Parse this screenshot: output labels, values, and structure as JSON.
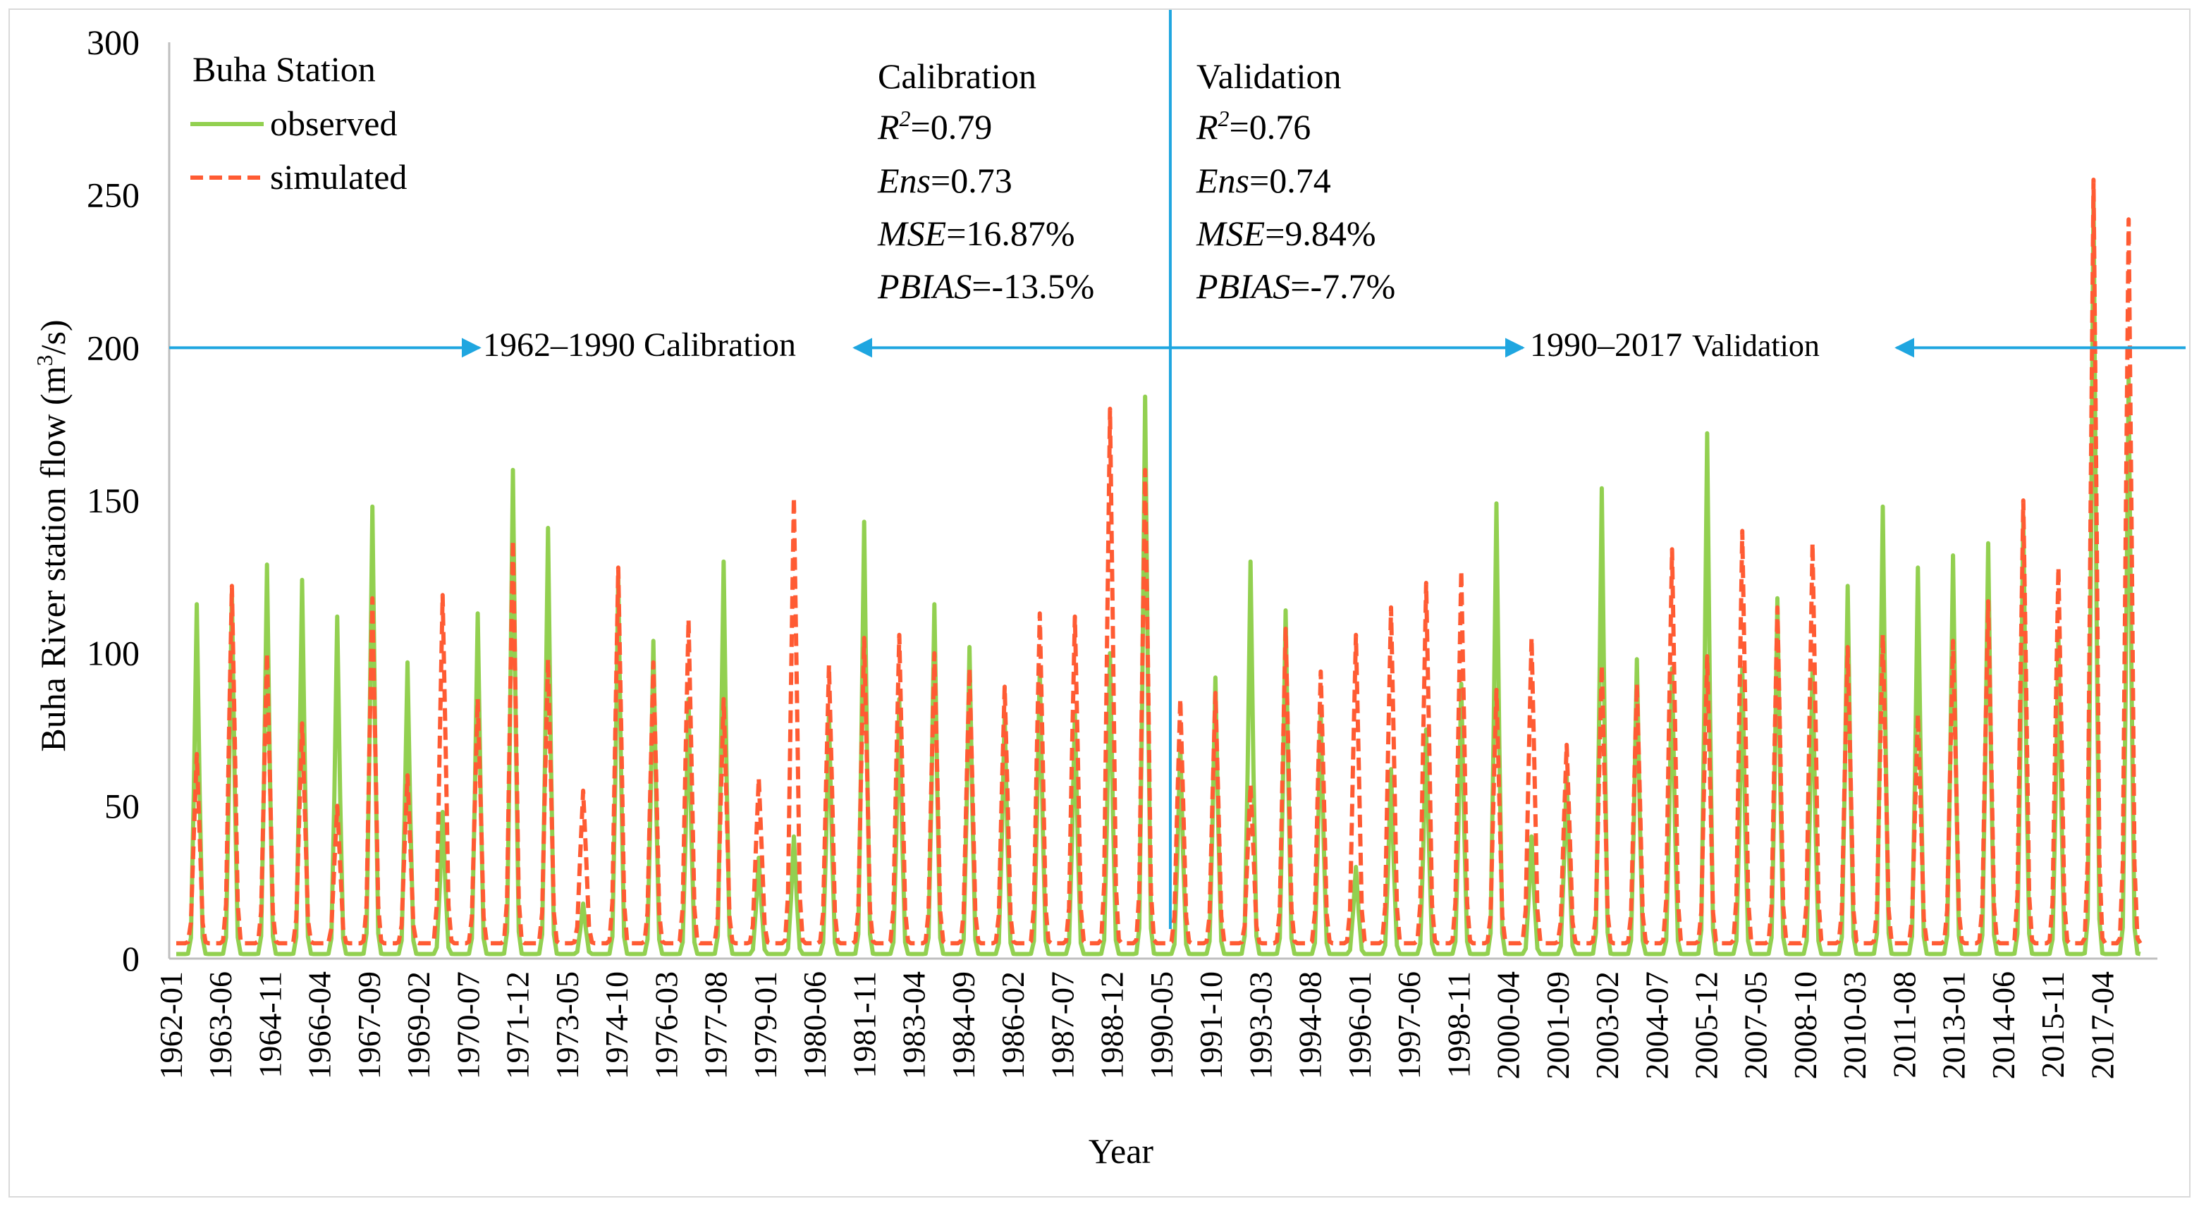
{
  "chart_data": {
    "type": "line",
    "title": "",
    "xlabel": "Year",
    "ylabel_main": "Buha River station flow (m",
    "ylabel_sup": "3",
    "ylabel_end": "/s)",
    "ylim": [
      0,
      300
    ],
    "yticks": [
      "0",
      "50",
      "100",
      "150",
      "200",
      "250",
      "300"
    ],
    "ytick_values": [
      0,
      50,
      100,
      150,
      200,
      250,
      300
    ],
    "xticks": [
      "1962-01",
      "1963-06",
      "1964-11",
      "1966-04",
      "1967-09",
      "1969-02",
      "1970-07",
      "1971-12",
      "1973-05",
      "1974-10",
      "1976-03",
      "1977-08",
      "1979-01",
      "1980-06",
      "1981-11",
      "1983-04",
      "1984-09",
      "1986-02",
      "1987-07",
      "1988-12",
      "1990-05",
      "1991-10",
      "1993-03",
      "1994-08",
      "1996-01",
      "1997-06",
      "1998-11",
      "2000-04",
      "2001-09",
      "2003-02",
      "2004-07",
      "2005-12",
      "2007-05",
      "2008-10",
      "2010-03",
      "2011-08",
      "2013-01",
      "2014-06",
      "2015-11",
      "2017-04"
    ],
    "x_start_year": 1962,
    "x_end_year": 2018,
    "legend": {
      "title": "Buha Station",
      "position": "top-left",
      "entries": [
        {
          "label": "observed",
          "color": "#92d050",
          "style": "solid"
        },
        {
          "label": "simulated",
          "color": "#ff5b33",
          "style": "dashed"
        }
      ]
    },
    "series": [
      {
        "name": "observed",
        "color": "#92d050",
        "annual_peaks": [
          {
            "year": 1962,
            "peak": 116
          },
          {
            "year": 1963,
            "peak": 120
          },
          {
            "year": 1964,
            "peak": 129
          },
          {
            "year": 1965,
            "peak": 124
          },
          {
            "year": 1966,
            "peak": 112
          },
          {
            "year": 1967,
            "peak": 148
          },
          {
            "year": 1968,
            "peak": 97
          },
          {
            "year": 1969,
            "peak": 48
          },
          {
            "year": 1970,
            "peak": 113
          },
          {
            "year": 1971,
            "peak": 160
          },
          {
            "year": 1972,
            "peak": 141
          },
          {
            "year": 1973,
            "peak": 18
          },
          {
            "year": 1974,
            "peak": 125
          },
          {
            "year": 1975,
            "peak": 104
          },
          {
            "year": 1976,
            "peak": 85
          },
          {
            "year": 1977,
            "peak": 130
          },
          {
            "year": 1978,
            "peak": 33
          },
          {
            "year": 1979,
            "peak": 40
          },
          {
            "year": 1980,
            "peak": 80
          },
          {
            "year": 1981,
            "peak": 143
          },
          {
            "year": 1982,
            "peak": 85
          },
          {
            "year": 1983,
            "peak": 116
          },
          {
            "year": 1984,
            "peak": 102
          },
          {
            "year": 1985,
            "peak": 80
          },
          {
            "year": 1986,
            "peak": 95
          },
          {
            "year": 1987,
            "peak": 80
          },
          {
            "year": 1988,
            "peak": 100
          },
          {
            "year": 1989,
            "peak": 184
          },
          {
            "year": 1990,
            "peak": 70
          },
          {
            "year": 1991,
            "peak": 92
          },
          {
            "year": 1992,
            "peak": 130
          },
          {
            "year": 1993,
            "peak": 114
          },
          {
            "year": 1994,
            "peak": 80
          },
          {
            "year": 1995,
            "peak": 30
          },
          {
            "year": 1996,
            "peak": 62
          },
          {
            "year": 1997,
            "peak": 75
          },
          {
            "year": 1998,
            "peak": 90
          },
          {
            "year": 1999,
            "peak": 149
          },
          {
            "year": 2000,
            "peak": 40
          },
          {
            "year": 2001,
            "peak": 60
          },
          {
            "year": 2002,
            "peak": 154
          },
          {
            "year": 2003,
            "peak": 98
          },
          {
            "year": 2004,
            "peak": 95
          },
          {
            "year": 2005,
            "peak": 172
          },
          {
            "year": 2006,
            "peak": 95
          },
          {
            "year": 2007,
            "peak": 118
          },
          {
            "year": 2008,
            "peak": 95
          },
          {
            "year": 2009,
            "peak": 122
          },
          {
            "year": 2010,
            "peak": 148
          },
          {
            "year": 2011,
            "peak": 128
          },
          {
            "year": 2012,
            "peak": 132
          },
          {
            "year": 2013,
            "peak": 136
          },
          {
            "year": 2014,
            "peak": 145
          },
          {
            "year": 2015,
            "peak": 105
          },
          {
            "year": 2016,
            "peak": 250
          },
          {
            "year": 2017,
            "peak": 190
          }
        ]
      },
      {
        "name": "simulated",
        "color": "#ff5b33",
        "annual_peaks": [
          {
            "year": 1962,
            "peak": 67
          },
          {
            "year": 1963,
            "peak": 122
          },
          {
            "year": 1964,
            "peak": 100
          },
          {
            "year": 1965,
            "peak": 77
          },
          {
            "year": 1966,
            "peak": 50
          },
          {
            "year": 1967,
            "peak": 118
          },
          {
            "year": 1968,
            "peak": 60
          },
          {
            "year": 1969,
            "peak": 119
          },
          {
            "year": 1970,
            "peak": 85
          },
          {
            "year": 1971,
            "peak": 137
          },
          {
            "year": 1972,
            "peak": 98
          },
          {
            "year": 1973,
            "peak": 55
          },
          {
            "year": 1974,
            "peak": 128
          },
          {
            "year": 1975,
            "peak": 97
          },
          {
            "year": 1976,
            "peak": 111
          },
          {
            "year": 1977,
            "peak": 85
          },
          {
            "year": 1978,
            "peak": 59
          },
          {
            "year": 1979,
            "peak": 151
          },
          {
            "year": 1980,
            "peak": 96
          },
          {
            "year": 1981,
            "peak": 105
          },
          {
            "year": 1982,
            "peak": 106
          },
          {
            "year": 1983,
            "peak": 100
          },
          {
            "year": 1984,
            "peak": 95
          },
          {
            "year": 1985,
            "peak": 89
          },
          {
            "year": 1986,
            "peak": 113
          },
          {
            "year": 1987,
            "peak": 112
          },
          {
            "year": 1988,
            "peak": 180
          },
          {
            "year": 1989,
            "peak": 160
          },
          {
            "year": 1990,
            "peak": 85
          },
          {
            "year": 1991,
            "peak": 87
          },
          {
            "year": 1992,
            "peak": 57
          },
          {
            "year": 1993,
            "peak": 108
          },
          {
            "year": 1994,
            "peak": 94
          },
          {
            "year": 1995,
            "peak": 106
          },
          {
            "year": 1996,
            "peak": 115
          },
          {
            "year": 1997,
            "peak": 123
          },
          {
            "year": 1998,
            "peak": 127
          },
          {
            "year": 1999,
            "peak": 88
          },
          {
            "year": 2000,
            "peak": 105
          },
          {
            "year": 2001,
            "peak": 70
          },
          {
            "year": 2002,
            "peak": 96
          },
          {
            "year": 2003,
            "peak": 90
          },
          {
            "year": 2004,
            "peak": 134
          },
          {
            "year": 2005,
            "peak": 99
          },
          {
            "year": 2006,
            "peak": 140
          },
          {
            "year": 2007,
            "peak": 115
          },
          {
            "year": 2008,
            "peak": 136
          },
          {
            "year": 2009,
            "peak": 102
          },
          {
            "year": 2010,
            "peak": 106
          },
          {
            "year": 2011,
            "peak": 80
          },
          {
            "year": 2012,
            "peak": 104
          },
          {
            "year": 2013,
            "peak": 117
          },
          {
            "year": 2014,
            "peak": 150
          },
          {
            "year": 2015,
            "peak": 128
          },
          {
            "year": 2016,
            "peak": 255
          },
          {
            "year": 2017,
            "peak": 242
          }
        ]
      }
    ],
    "divider_year": 1990.3,
    "calibration_stats": {
      "heading": "Calibration",
      "r2_label": "R",
      "r2_sup": "2",
      "r2_value": "=0.79",
      "ens_label": "Ens",
      "ens_value": "=0.73",
      "mse_label": "MSE",
      "mse_value": "=16.87%",
      "pbias_label": "PBIAS",
      "pbias_value": "=-13.5%"
    },
    "validation_stats": {
      "heading": "Validation",
      "r2_label": "R",
      "r2_sup": "2",
      "r2_value": "=0.76",
      "ens_label": "Ens",
      "ens_value": "=0.74",
      "mse_label": "MSE",
      "mse_value": "=9.84%",
      "pbias_label": "PBIAS",
      "pbias_value": "=-7.7%"
    },
    "period_annotations": {
      "level": 200,
      "calibration_label": "1962–1990 Calibration",
      "validation_label_years": "1990–2017",
      "validation_label_word": "Validation",
      "arrow_color": "#1fa6e0"
    }
  }
}
